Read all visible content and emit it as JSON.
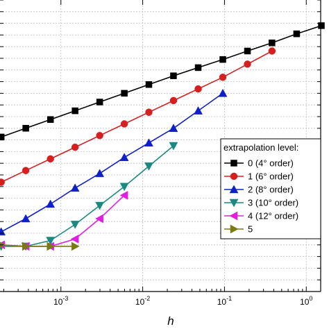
{
  "chart_data": {
    "type": "line",
    "xscale": "log",
    "xlabel": "h",
    "ylabel": "",
    "xlim": [
      0.00018,
      1.5
    ],
    "xticks": [
      {
        "value": 0.001,
        "base": "10",
        "exp": "-3"
      },
      {
        "value": 0.01,
        "base": "10",
        "exp": "-2"
      },
      {
        "value": 0.1,
        "base": "10",
        "exp": "-1"
      },
      {
        "value": 1,
        "base": "10",
        "exp": "0"
      }
    ],
    "ylim": [
      0,
      100
    ],
    "yticks": [
      0,
      4,
      8,
      12,
      16,
      20,
      24,
      28,
      32,
      36,
      40,
      44,
      48,
      52,
      56,
      60,
      64,
      68,
      72,
      76,
      80,
      84,
      88,
      92,
      96,
      100
    ],
    "grid": true,
    "legend": {
      "title": "extrapolation level:",
      "placement": "right"
    },
    "series": [
      {
        "name": "0 (4° order)",
        "color": "#000000",
        "marker": "square",
        "x": [
          0.000186,
          0.000372,
          0.000745,
          0.00149,
          0.00298,
          0.00596,
          0.0119,
          0.0238,
          0.0477,
          0.0954,
          0.191,
          0.381,
          0.763,
          1.53
        ],
        "y": [
          53,
          56,
          59,
          62,
          65,
          68,
          71,
          74,
          76.8,
          79.6,
          82.5,
          85.3,
          88.4,
          91.2
        ]
      },
      {
        "name": "1 (6° order)",
        "color": "#d62020",
        "marker": "circle",
        "x": [
          0.000186,
          0.000372,
          0.000745,
          0.00149,
          0.00298,
          0.00596,
          0.0119,
          0.0238,
          0.0477,
          0.0954,
          0.191,
          0.381
        ],
        "y": [
          37.5,
          41.5,
          45.5,
          49.5,
          53.5,
          57.5,
          61.5,
          65.5,
          69.5,
          73.5,
          78,
          82.5
        ]
      },
      {
        "name": "2 (8° order)",
        "color": "#1020c8",
        "marker": "triangle-up",
        "x": [
          0.000186,
          0.000372,
          0.000745,
          0.00149,
          0.00298,
          0.00596,
          0.0119,
          0.0238,
          0.0477,
          0.0954
        ],
        "y": [
          20.5,
          25,
          30,
          35.5,
          40.5,
          46,
          51,
          56,
          62,
          68
        ]
      },
      {
        "name": "3 (10° order)",
        "color": "#1a8a80",
        "marker": "triangle-down",
        "x": [
          0.000186,
          0.000372,
          0.000745,
          0.00149,
          0.00298,
          0.00596,
          0.0119,
          0.0238
        ],
        "y": [
          15.5,
          15.5,
          17.5,
          23,
          29.5,
          36,
          43,
          50
        ]
      },
      {
        "name": "4 (12° order)",
        "color": "#e020e0",
        "marker": "triangle-left",
        "x": [
          0.000186,
          0.000372,
          0.000745,
          0.00149,
          0.00298,
          0.00596
        ],
        "y": [
          16,
          15.5,
          15.5,
          18,
          25,
          33
        ]
      },
      {
        "name": "5",
        "color": "#7a7a10",
        "marker": "triangle-right",
        "x": [
          0.000186,
          0.000372,
          0.000745,
          0.00149
        ],
        "y": [
          16,
          15.5,
          15.5,
          15.5
        ]
      }
    ]
  }
}
